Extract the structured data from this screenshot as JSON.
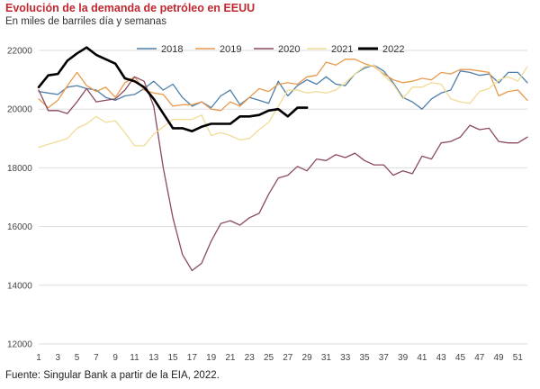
{
  "title": "Evolución de la demanda de petróleo en EEUU",
  "subtitle": "En miles de barriles día y semanas",
  "source": "Fuente:  Singular Bank a partir de la EIA, 2022.",
  "chart_data": {
    "type": "line",
    "title": "Evolución de la demanda de petróleo en EEUU",
    "subtitle": "En miles de barriles día y semanas",
    "xlabel": "",
    "ylabel": "",
    "xlim": [
      1,
      52
    ],
    "ylim": [
      12000,
      22000
    ],
    "yticks": [
      12000,
      14000,
      16000,
      18000,
      20000,
      22000
    ],
    "ytick_labels": [
      "12000",
      "14000",
      "16000",
      "18000",
      "20000",
      "22000"
    ],
    "xticks": [
      1,
      3,
      5,
      7,
      9,
      11,
      13,
      15,
      17,
      19,
      21,
      23,
      25,
      27,
      29,
      31,
      33,
      35,
      37,
      39,
      41,
      43,
      45,
      47,
      49,
      51
    ],
    "xtick_labels": [
      "1",
      "3",
      "5",
      "7",
      "9",
      "11",
      "13",
      "15",
      "17",
      "19",
      "21",
      "23",
      "25",
      "27",
      "29",
      "31",
      "33",
      "35",
      "37",
      "39",
      "41",
      "43",
      "45",
      "47",
      "49",
      "51"
    ],
    "grid": "horizontal",
    "legend_position": "top-center",
    "series": [
      {
        "name": "2018",
        "color": "#4e7fa8",
        "width": 1.3,
        "x": [
          1,
          2,
          3,
          4,
          5,
          6,
          7,
          8,
          9,
          10,
          11,
          12,
          13,
          14,
          15,
          16,
          17,
          18,
          19,
          20,
          21,
          22,
          23,
          24,
          25,
          26,
          27,
          28,
          29,
          30,
          31,
          32,
          33,
          34,
          35,
          36,
          37,
          38,
          39,
          40,
          41,
          42,
          43,
          44,
          45,
          46,
          47,
          48,
          49,
          50,
          51,
          52
        ],
        "values": [
          20600,
          20550,
          20500,
          20750,
          20800,
          20700,
          20650,
          20400,
          20300,
          20450,
          20500,
          20700,
          20950,
          20650,
          20850,
          20400,
          20100,
          20250,
          20050,
          20450,
          20650,
          20150,
          20400,
          20300,
          20200,
          20950,
          20450,
          20800,
          21000,
          20850,
          21100,
          20850,
          20800,
          21200,
          21400,
          21500,
          21300,
          20900,
          20400,
          20250,
          20000,
          20350,
          20550,
          20650,
          21300,
          21250,
          21150,
          21200,
          20900,
          21250,
          21250,
          20900
        ]
      },
      {
        "name": "2019",
        "color": "#e89a4e",
        "width": 1.3,
        "x": [
          1,
          2,
          3,
          4,
          5,
          6,
          7,
          8,
          9,
          10,
          11,
          12,
          13,
          14,
          15,
          16,
          17,
          18,
          19,
          20,
          21,
          22,
          23,
          24,
          25,
          26,
          27,
          28,
          29,
          30,
          31,
          32,
          33,
          34,
          35,
          36,
          37,
          38,
          39,
          40,
          41,
          42,
          43,
          44,
          45,
          46,
          47,
          48,
          49,
          50,
          51,
          52
        ],
        "values": [
          20350,
          20050,
          20300,
          20800,
          21250,
          20800,
          20600,
          20750,
          20400,
          20900,
          21100,
          20650,
          20550,
          20500,
          20100,
          20150,
          20150,
          20250,
          20000,
          19950,
          20250,
          20100,
          20400,
          20700,
          20600,
          20850,
          20900,
          20850,
          21100,
          21150,
          21600,
          21500,
          21700,
          21700,
          21550,
          21450,
          21200,
          21000,
          20900,
          20950,
          21050,
          21000,
          21250,
          21200,
          21350,
          21350,
          21300,
          21250,
          20450,
          20600,
          20650,
          20300
        ]
      },
      {
        "name": "2020",
        "color": "#8c4a5e",
        "width": 1.3,
        "x": [
          1,
          2,
          3,
          4,
          5,
          6,
          7,
          8,
          9,
          10,
          11,
          12,
          13,
          14,
          15,
          16,
          17,
          18,
          19,
          20,
          21,
          22,
          23,
          24,
          25,
          26,
          27,
          28,
          29,
          30,
          31,
          32,
          33,
          34,
          35,
          36,
          37,
          38,
          39,
          40,
          41,
          42,
          43,
          44,
          45,
          46,
          47,
          48,
          49,
          50,
          51,
          52
        ],
        "values": [
          20650,
          19950,
          19950,
          19850,
          20250,
          20700,
          20250,
          20300,
          20350,
          20650,
          21100,
          20950,
          20100,
          18000,
          16300,
          15050,
          14500,
          14750,
          15500,
          16100,
          16200,
          16050,
          16300,
          16450,
          17100,
          17650,
          17750,
          18050,
          17900,
          18300,
          18250,
          18450,
          18350,
          18500,
          18250,
          18100,
          18100,
          17750,
          17900,
          17800,
          18400,
          18300,
          18850,
          18900,
          19050,
          19450,
          19300,
          19350,
          18900,
          18850,
          18850,
          19050
        ]
      },
      {
        "name": "2021",
        "color": "#f0dc96",
        "width": 1.3,
        "x": [
          1,
          2,
          3,
          4,
          5,
          6,
          7,
          8,
          9,
          10,
          11,
          12,
          13,
          14,
          15,
          16,
          17,
          18,
          19,
          20,
          21,
          22,
          23,
          24,
          25,
          26,
          27,
          28,
          29,
          30,
          31,
          32,
          33,
          34,
          35,
          36,
          37,
          38,
          39,
          40,
          41,
          42,
          43,
          44,
          45,
          46,
          47,
          48,
          49,
          50,
          51,
          52
        ],
        "values": [
          18700,
          18800,
          18900,
          19000,
          19350,
          19500,
          19750,
          19550,
          19600,
          19200,
          18750,
          18750,
          19150,
          19400,
          19650,
          19650,
          19650,
          19800,
          19100,
          19200,
          19100,
          18950,
          19000,
          19300,
          19550,
          20100,
          20650,
          20650,
          20550,
          20600,
          20550,
          20650,
          20900,
          21200,
          21450,
          21500,
          21150,
          20850,
          20350,
          20750,
          20750,
          20900,
          20850,
          20350,
          20250,
          20200,
          20600,
          20700,
          21000,
          21100,
          20950,
          21450
        ]
      },
      {
        "name": "2022",
        "color": "#000000",
        "width": 2.6,
        "x": [
          1,
          2,
          3,
          4,
          5,
          6,
          7,
          8,
          9,
          10,
          11,
          12,
          13,
          14,
          15,
          16,
          17,
          18,
          19,
          20,
          21,
          22,
          23,
          24,
          25,
          26,
          27,
          28,
          29
        ],
        "values": [
          20750,
          21150,
          21200,
          21650,
          21900,
          22100,
          21850,
          21700,
          21550,
          21050,
          20950,
          20750,
          20350,
          19850,
          19350,
          19350,
          19250,
          19400,
          19500,
          19500,
          19500,
          19750,
          19750,
          19800,
          19950,
          20000,
          19750,
          20050,
          20050
        ]
      }
    ]
  }
}
